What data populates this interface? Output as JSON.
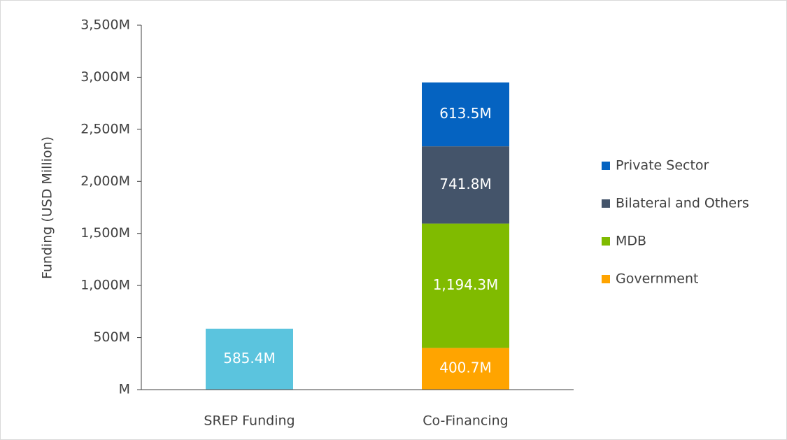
{
  "chart_data": {
    "type": "stacked_bar",
    "y_label": "Funding (USD Million)",
    "categories": [
      "SREP Funding",
      "Co-Financing"
    ],
    "series": [
      {
        "color": "#5bc4de",
        "values": [
          585.4,
          null
        ],
        "value_labels": [
          "585.4M",
          null
        ]
      },
      {
        "name": "Government",
        "color": "#ffa400",
        "values": [
          null,
          400.7
        ],
        "value_labels": [
          null,
          "400.7M"
        ]
      },
      {
        "name": "MDB",
        "color": "#80bb00",
        "values": [
          null,
          1194.3
        ],
        "value_labels": [
          null,
          "1,194.3M"
        ]
      },
      {
        "name": "Bilateral and Others",
        "color": "#44546a",
        "values": [
          null,
          741.8
        ],
        "value_labels": [
          null,
          "741.8M"
        ]
      },
      {
        "name": "Private Sector",
        "color": "#0563c1",
        "values": [
          null,
          613.5
        ],
        "value_labels": [
          null,
          "613.5M"
        ]
      }
    ],
    "ylim": [
      0,
      3500
    ],
    "yticks": [
      {
        "value": 0,
        "label": "M"
      },
      {
        "value": 500,
        "label": "500M"
      },
      {
        "value": 1000,
        "label": "1,000M"
      },
      {
        "value": 1500,
        "label": "1,500M"
      },
      {
        "value": 2000,
        "label": "2,000M"
      },
      {
        "value": 2500,
        "label": "2,500M"
      },
      {
        "value": 3000,
        "label": "3,000M"
      },
      {
        "value": 3500,
        "label": "3,500M"
      }
    ],
    "legend": "right"
  }
}
